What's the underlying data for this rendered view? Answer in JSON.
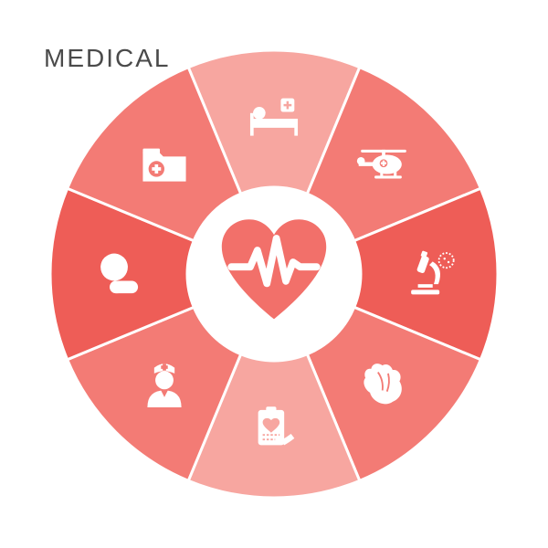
{
  "title": "MEDICAL",
  "chart": {
    "type": "radial-segments",
    "outer_radius": 245,
    "inner_radius": 95,
    "center_bg": "#ffffff",
    "stroke_color": "#ffffff",
    "stroke_width": 3,
    "icon_color": "#ffffff",
    "center_icon_color": "#f2706a",
    "segments": [
      {
        "name": "hospital-bed",
        "color": "#f7a6a0",
        "icon": "hospital-bed-icon",
        "start": -112.5,
        "end": -67.5
      },
      {
        "name": "helicopter",
        "color": "#f37b75",
        "icon": "helicopter-icon",
        "start": -67.5,
        "end": -22.5
      },
      {
        "name": "microscope",
        "color": "#ee5d57",
        "icon": "microscope-icon",
        "start": -22.5,
        "end": 22.5
      },
      {
        "name": "anatomical-heart",
        "color": "#f37b75",
        "icon": "heart-organ-icon",
        "start": 22.5,
        "end": 67.5
      },
      {
        "name": "clipboard",
        "color": "#f7a6a0",
        "icon": "clipboard-icon",
        "start": 67.5,
        "end": 112.5
      },
      {
        "name": "nurse",
        "color": "#f37b75",
        "icon": "nurse-icon",
        "start": 112.5,
        "end": 157.5
      },
      {
        "name": "pills",
        "color": "#ee5d57",
        "icon": "pills-icon",
        "start": 157.5,
        "end": 202.5
      },
      {
        "name": "medical-folder",
        "color": "#f37b75",
        "icon": "folder-icon",
        "start": 202.5,
        "end": 247.5
      }
    ],
    "center_icon": "heartbeat-icon"
  },
  "title_style": {
    "color": "#4a4a4a",
    "fontsize": 28,
    "letter_spacing": 2
  }
}
